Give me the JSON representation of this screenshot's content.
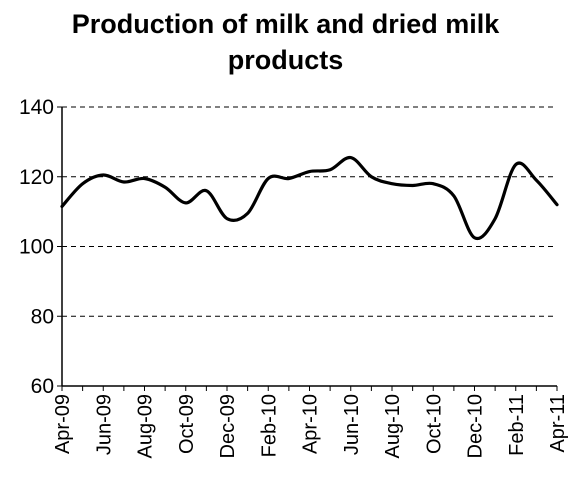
{
  "chart_data": {
    "type": "line",
    "title_lines": [
      "Production of milk and dried milk",
      "products"
    ],
    "xlabel": "",
    "ylabel": "",
    "ylim": [
      60,
      140
    ],
    "yticks": [
      60,
      80,
      100,
      120,
      140
    ],
    "grid": "horizontal dashed",
    "legend": "none",
    "categories": [
      "Apr-09",
      "May-09",
      "Jun-09",
      "Jul-09",
      "Aug-09",
      "Sep-09",
      "Oct-09",
      "Nov-09",
      "Dec-09",
      "Jan-10",
      "Feb-10",
      "Mar-10",
      "Apr-10",
      "May-10",
      "Jun-10",
      "Jul-10",
      "Aug-10",
      "Sep-10",
      "Oct-10",
      "Nov-10",
      "Dec-10",
      "Jan-11",
      "Feb-11",
      "Mar-11",
      "Apr-11"
    ],
    "xtick_labels": [
      "Apr-09",
      "Jun-09",
      "Aug-09",
      "Oct-09",
      "Dec-09",
      "Feb-10",
      "Apr-10",
      "Jun-10",
      "Aug-10",
      "Oct-10",
      "Dec-10",
      "Feb-11",
      "Apr-11"
    ],
    "series": [
      {
        "values": [
          111.5,
          118.0,
          120.5,
          118.5,
          119.5,
          117.0,
          112.5,
          116.0,
          108.0,
          109.5,
          119.5,
          119.5,
          121.5,
          122.0,
          125.5,
          120.0,
          118.0,
          117.5,
          118.0,
          114.5,
          102.5,
          108.0,
          123.5,
          119.0,
          112.0
        ]
      }
    ],
    "colors": {
      "line": "#000000",
      "grid": "#000000",
      "axis": "#000000"
    }
  }
}
